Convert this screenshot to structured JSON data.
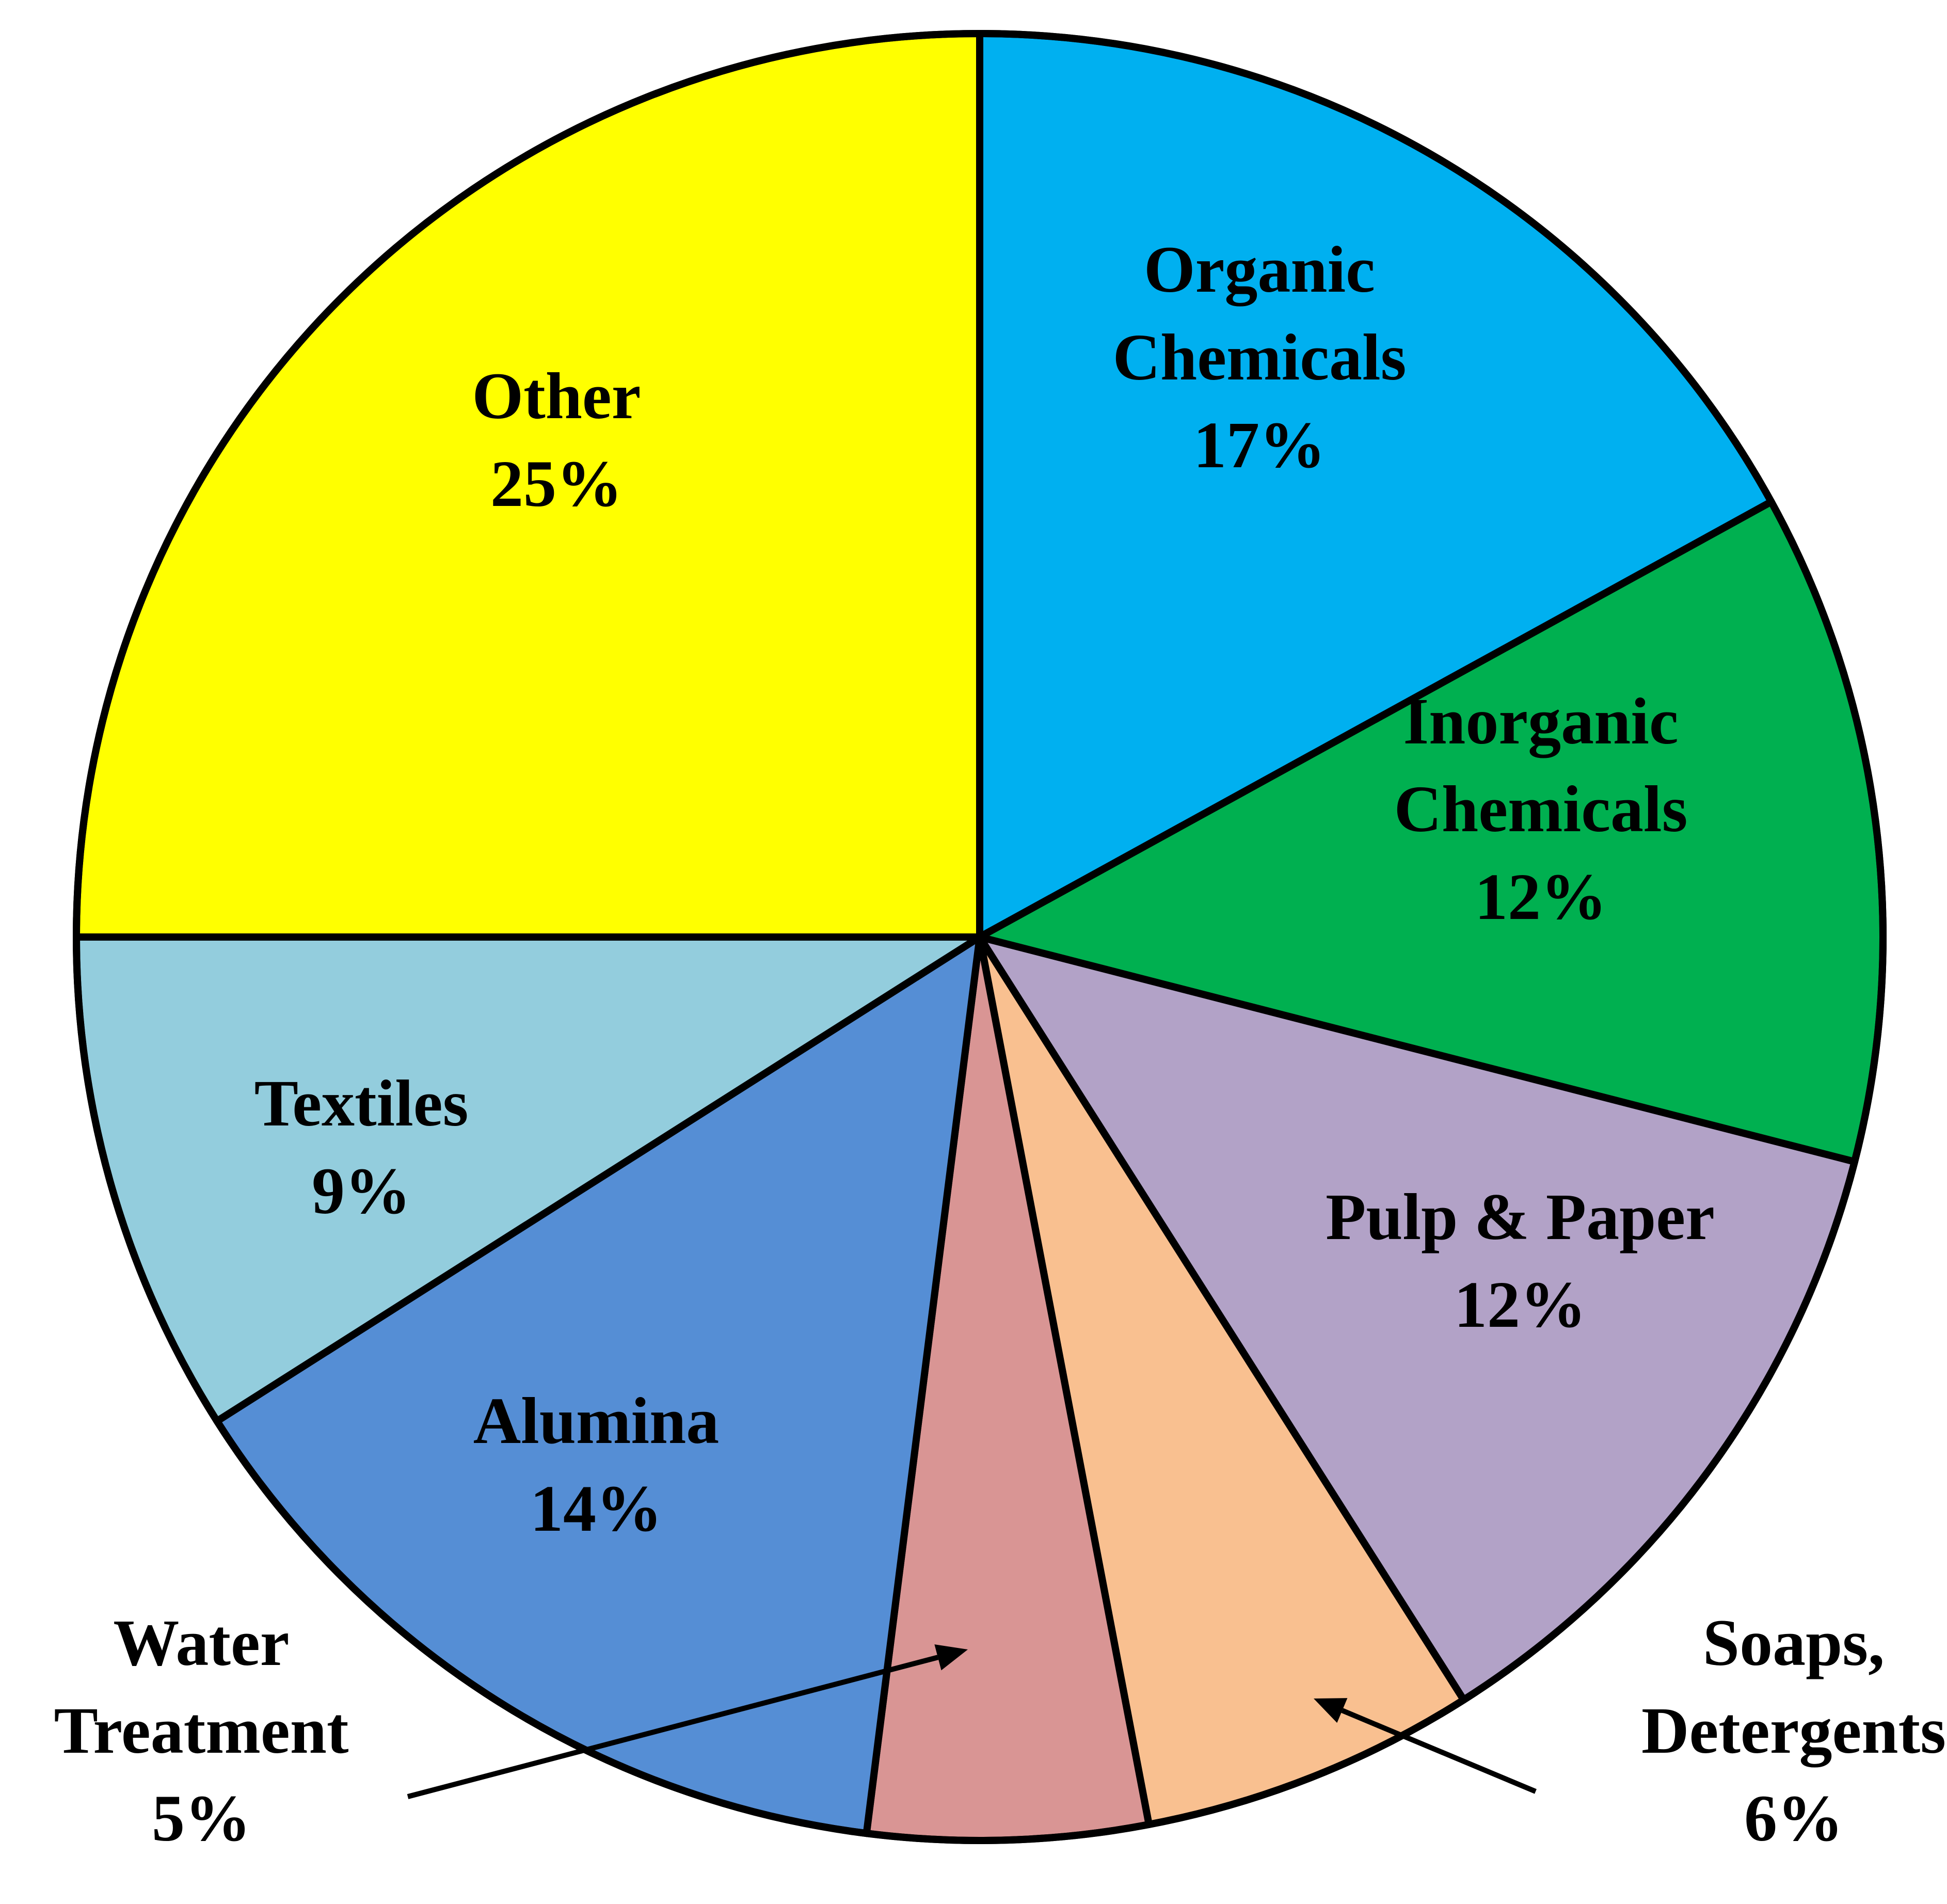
{
  "chart_data": {
    "type": "pie",
    "title": "",
    "start": "12 o'clock",
    "direction": "clockwise",
    "slices": [
      {
        "label": [
          "Organic",
          "Chemicals"
        ],
        "percent_label": "17%",
        "value": 17,
        "color": "#00B0F0"
      },
      {
        "label": [
          "Inorganic",
          "Chemicals"
        ],
        "percent_label": "12%",
        "value": 12,
        "color": "#00B050"
      },
      {
        "label": [
          "Pulp & Paper"
        ],
        "percent_label": "12%",
        "value": 12,
        "color": "#B2A2C7"
      },
      {
        "label": [
          "Soaps,",
          "Detergents"
        ],
        "percent_label": "6%",
        "value": 6,
        "color": "#F9C090"
      },
      {
        "label": [
          "Water",
          "Treatment"
        ],
        "percent_label": "5%",
        "value": 5,
        "color": "#D99594"
      },
      {
        "label": [
          "Alumina"
        ],
        "percent_label": "14%",
        "value": 14,
        "color": "#558ED5"
      },
      {
        "label": [
          "Textiles"
        ],
        "percent_label": "9%",
        "value": 9,
        "color": "#93CDDD"
      },
      {
        "label": [
          "Other"
        ],
        "percent_label": "25%",
        "value": 25,
        "color": "#FFFF00"
      }
    ]
  }
}
